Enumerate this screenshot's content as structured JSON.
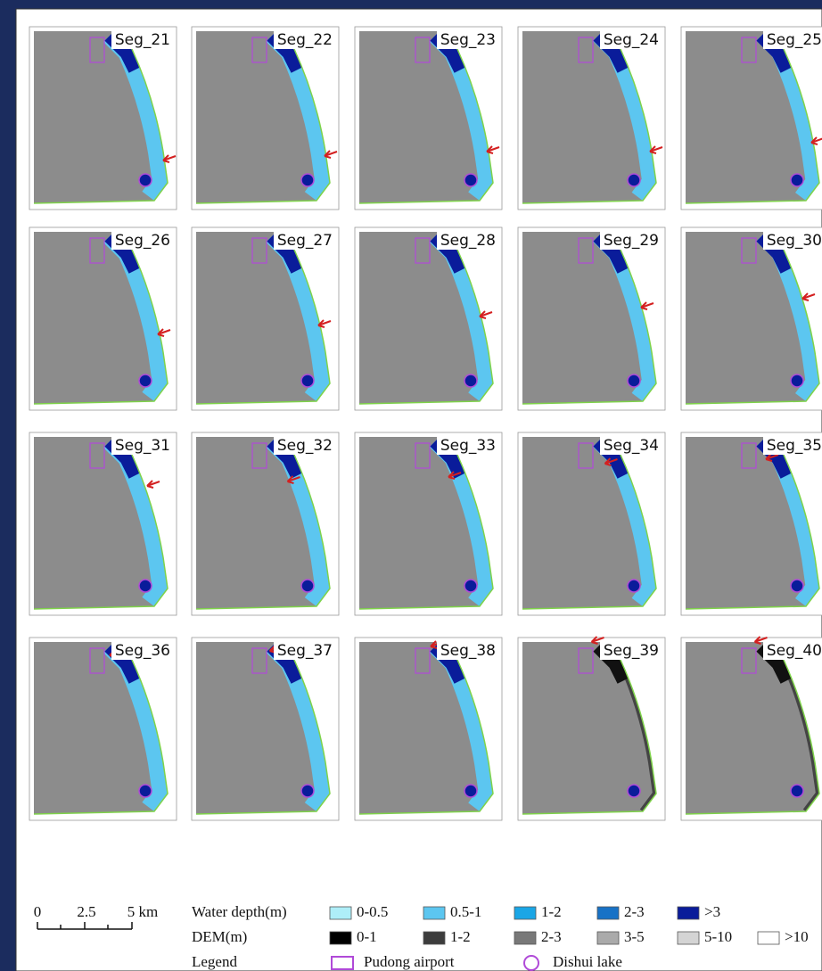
{
  "panels": [
    {
      "label": "Seg_21"
    },
    {
      "label": "Seg_22"
    },
    {
      "label": "Seg_23"
    },
    {
      "label": "Seg_24"
    },
    {
      "label": "Seg_25"
    },
    {
      "label": "Seg_26"
    },
    {
      "label": "Seg_27"
    },
    {
      "label": "Seg_28"
    },
    {
      "label": "Seg_29"
    },
    {
      "label": "Seg_30"
    },
    {
      "label": "Seg_31"
    },
    {
      "label": "Seg_32"
    },
    {
      "label": "Seg_33"
    },
    {
      "label": "Seg_34"
    },
    {
      "label": "Seg_35"
    },
    {
      "label": "Seg_36"
    },
    {
      "label": "Seg_37"
    },
    {
      "label": "Seg_38"
    },
    {
      "label": "Seg_39"
    },
    {
      "label": "Seg_40"
    }
  ],
  "scale_bar": {
    "labels": [
      "0",
      "2.5",
      "5 km"
    ]
  },
  "legend": {
    "water_depth": {
      "title": "Water depth(m)",
      "items": [
        {
          "label": "0-0.5",
          "color": "#aeeef8"
        },
        {
          "label": "0.5-1",
          "color": "#5cc6f0"
        },
        {
          "label": "1-2",
          "color": "#1aa6e6"
        },
        {
          "label": "2-3",
          "color": "#1872c6"
        },
        {
          "label": ">3",
          "color": "#0a1c9a"
        }
      ]
    },
    "dem": {
      "title": "DEM(m)",
      "items": [
        {
          "label": "0-1",
          "color": "#000000"
        },
        {
          "label": "1-2",
          "color": "#3c3c3c"
        },
        {
          "label": "2-3",
          "color": "#787878"
        },
        {
          "label": "3-5",
          "color": "#aaaaaa"
        },
        {
          "label": "5-10",
          "color": "#d4d4d4"
        },
        {
          "label": ">10",
          "color": "#ffffff"
        }
      ]
    },
    "features": {
      "title": "Legend",
      "items": [
        {
          "label": "Pudong airport"
        },
        {
          "label": "Dishui lake"
        }
      ]
    }
  }
}
